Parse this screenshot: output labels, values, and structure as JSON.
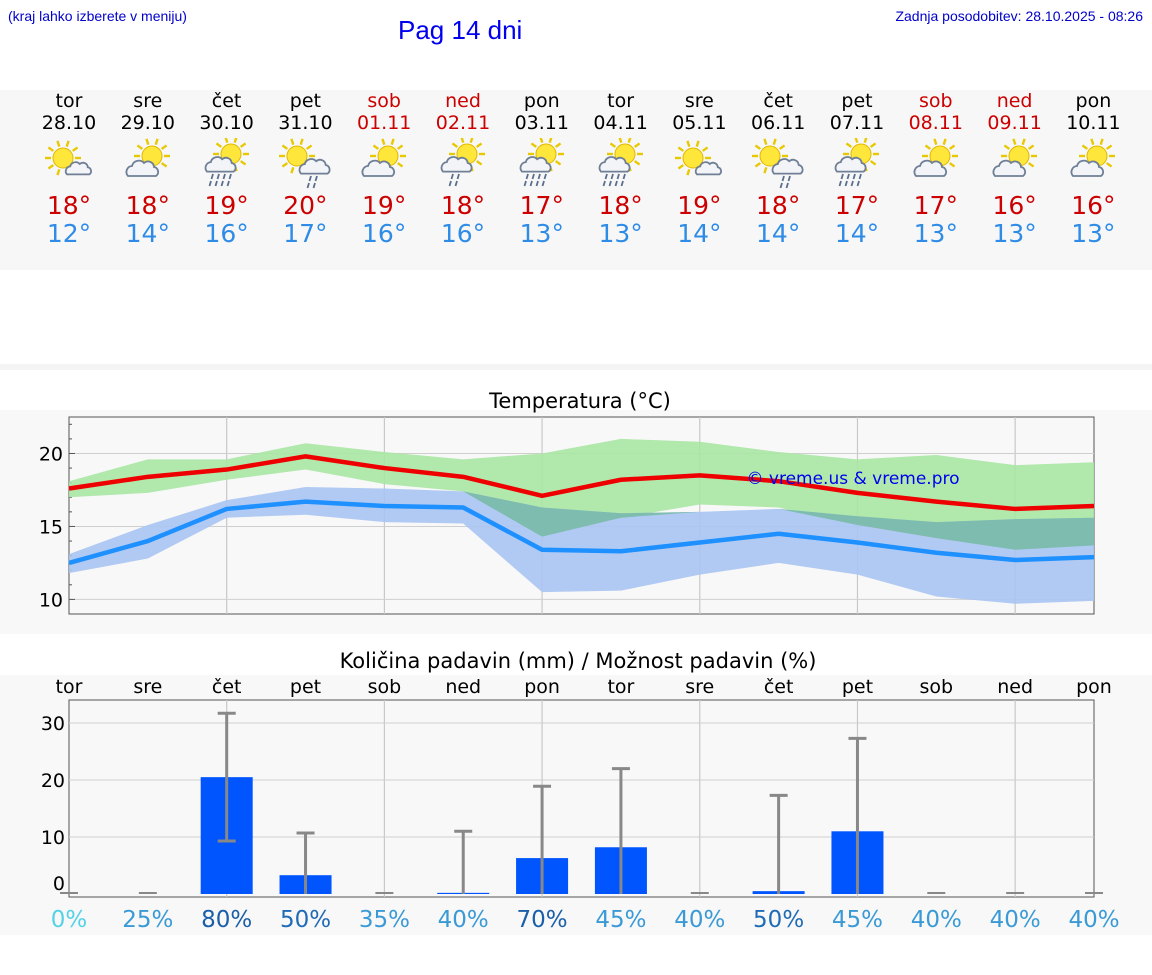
{
  "header": {
    "hint": "(kraj lahko izberete v meniju)",
    "title": "Pag 14 dni",
    "updated": "Zadnja posodobitev: 28.10.2025 - 08:26"
  },
  "days": [
    {
      "name": "tor",
      "date": "28.10",
      "weekend": false,
      "icon": "sun-cloud-icon",
      "hi": "18°",
      "lo": "12°"
    },
    {
      "name": "sre",
      "date": "29.10",
      "weekend": false,
      "icon": "cloud-sun-icon",
      "hi": "18°",
      "lo": "14°"
    },
    {
      "name": "čet",
      "date": "30.10",
      "weekend": false,
      "icon": "rain-sun-cloud-icon",
      "hi": "19°",
      "lo": "16°"
    },
    {
      "name": "pet",
      "date": "31.10",
      "weekend": false,
      "icon": "sun-cloud-light-rain-icon",
      "hi": "20°",
      "lo": "17°"
    },
    {
      "name": "sob",
      "date": "01.11",
      "weekend": true,
      "icon": "cloud-sun-icon",
      "hi": "19°",
      "lo": "16°"
    },
    {
      "name": "ned",
      "date": "02.11",
      "weekend": true,
      "icon": "cloud-sun-light-rain-icon",
      "hi": "18°",
      "lo": "16°"
    },
    {
      "name": "pon",
      "date": "03.11",
      "weekend": false,
      "icon": "rain-sun-cloud-icon",
      "hi": "17°",
      "lo": "13°"
    },
    {
      "name": "tor",
      "date": "04.11",
      "weekend": false,
      "icon": "rain-sun-cloud-icon",
      "hi": "18°",
      "lo": "13°"
    },
    {
      "name": "sre",
      "date": "05.11",
      "weekend": false,
      "icon": "sun-cloud-icon",
      "hi": "19°",
      "lo": "14°"
    },
    {
      "name": "čet",
      "date": "06.11",
      "weekend": false,
      "icon": "sun-cloud-light-rain-icon",
      "hi": "18°",
      "lo": "14°"
    },
    {
      "name": "pet",
      "date": "07.11",
      "weekend": false,
      "icon": "rain-sun-cloud-icon",
      "hi": "17°",
      "lo": "14°"
    },
    {
      "name": "sob",
      "date": "08.11",
      "weekend": true,
      "icon": "cloud-sun-icon",
      "hi": "17°",
      "lo": "13°"
    },
    {
      "name": "ned",
      "date": "09.11",
      "weekend": true,
      "icon": "cloud-sun-icon",
      "hi": "16°",
      "lo": "13°"
    },
    {
      "name": "pon",
      "date": "10.11",
      "weekend": false,
      "icon": "cloud-sun-icon",
      "hi": "16°",
      "lo": "13°"
    }
  ],
  "colors": {
    "hi": "#ee0000",
    "lo": "#1e90ff",
    "hi_band": "#a8e6a3",
    "lo_band": "#a9c4f2",
    "bar": "#0055ff",
    "whisker": "#888888"
  },
  "chart_data": [
    {
      "type": "line",
      "title": "Temperatura (°C)",
      "watermark": "© vreme.us & vreme.pro",
      "ylim": [
        9,
        22.5
      ],
      "yticks": [
        10,
        15,
        20
      ],
      "x": [
        0,
        1,
        2,
        3,
        4,
        5,
        6,
        7,
        8,
        9,
        10,
        11,
        12,
        13
      ],
      "series": [
        {
          "name": "max",
          "values": [
            17.6,
            18.4,
            18.9,
            19.8,
            19.0,
            18.4,
            17.1,
            18.2,
            18.5,
            18.1,
            17.3,
            16.7,
            16.2,
            16.4
          ]
        },
        {
          "name": "max_low",
          "values": [
            17.0,
            17.3,
            18.2,
            18.9,
            17.9,
            17.4,
            14.3,
            15.6,
            16.5,
            16.3,
            15.1,
            14.2,
            13.4,
            13.7
          ]
        },
        {
          "name": "max_high",
          "values": [
            18.1,
            19.6,
            19.6,
            20.7,
            20.1,
            19.6,
            20.0,
            21.0,
            20.8,
            20.1,
            19.6,
            19.9,
            19.2,
            19.4
          ]
        },
        {
          "name": "min",
          "values": [
            12.5,
            14.0,
            16.2,
            16.7,
            16.4,
            16.3,
            13.4,
            13.3,
            13.9,
            14.5,
            13.9,
            13.2,
            12.7,
            12.9
          ]
        },
        {
          "name": "min_low",
          "values": [
            11.8,
            12.8,
            15.6,
            15.8,
            15.3,
            15.2,
            10.5,
            10.6,
            11.7,
            12.5,
            11.7,
            10.2,
            9.7,
            9.9
          ]
        },
        {
          "name": "min_high",
          "values": [
            13.1,
            15.1,
            16.8,
            17.7,
            17.6,
            17.4,
            16.3,
            15.9,
            16.0,
            16.2,
            15.7,
            15.3,
            15.5,
            15.6
          ]
        }
      ]
    },
    {
      "type": "bar",
      "title": "Količina padavin (mm) / Možnost padavin (%)",
      "ylim": [
        -2,
        34
      ],
      "yticks": [
        0,
        10,
        20,
        30
      ],
      "categories": [
        "tor",
        "sre",
        "čet",
        "pet",
        "sob",
        "ned",
        "pon",
        "tor",
        "sre",
        "čet",
        "pet",
        "sob",
        "ned",
        "pon"
      ],
      "values": [
        0,
        0,
        20.5,
        3.3,
        0,
        0.2,
        6.3,
        8.2,
        0,
        0.5,
        11.0,
        0,
        0,
        0
      ],
      "whisker_low": [
        0,
        0,
        9.3,
        0,
        0,
        0,
        0,
        0,
        0,
        0,
        0,
        0,
        0,
        0
      ],
      "whisker_high": [
        0,
        0,
        31.7,
        10.7,
        0,
        11.0,
        18.9,
        22.0,
        0,
        17.3,
        27.3,
        0,
        0,
        0
      ],
      "probability": [
        "0%",
        "25%",
        "80%",
        "50%",
        "35%",
        "40%",
        "70%",
        "45%",
        "40%",
        "50%",
        "45%",
        "40%",
        "40%",
        "40%"
      ],
      "probability_values": [
        0,
        25,
        80,
        50,
        35,
        40,
        70,
        45,
        40,
        50,
        45,
        40,
        40,
        40
      ]
    }
  ]
}
